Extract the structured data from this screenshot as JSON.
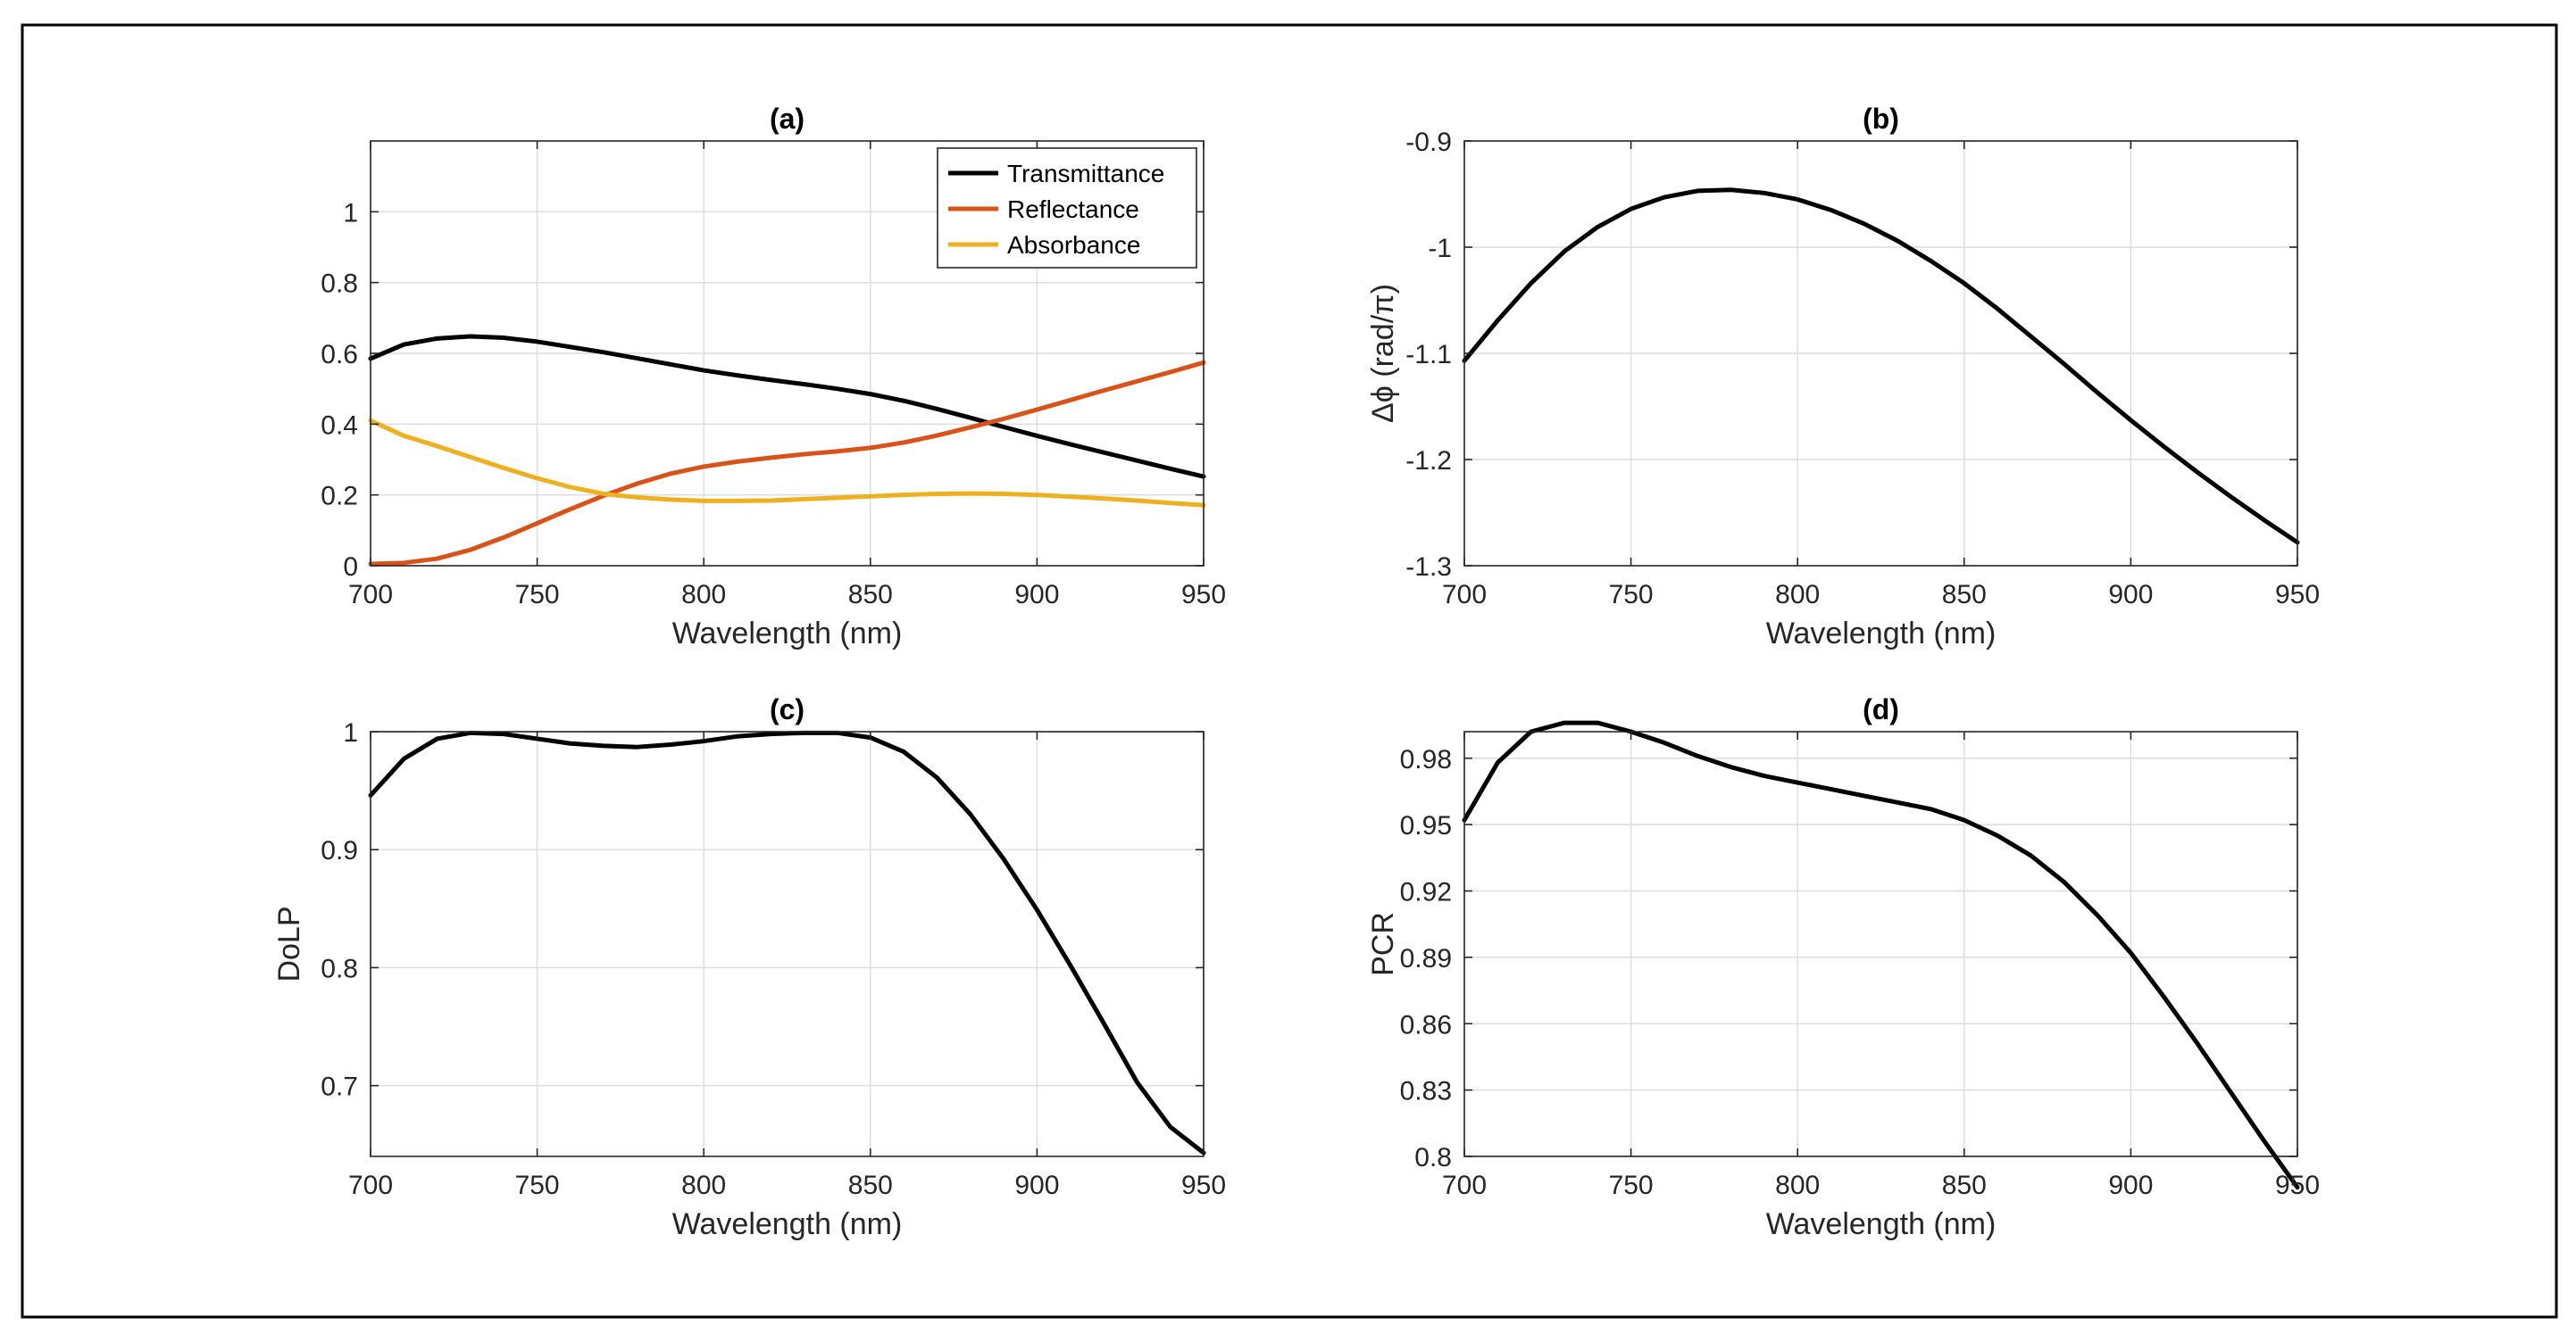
{
  "chart_data": [
    {
      "panel": "a",
      "type": "line",
      "title": "(a)",
      "xlabel": "Wavelength (nm)",
      "ylabel": "",
      "xlim": [
        700,
        950
      ],
      "ylim": [
        0,
        1.2
      ],
      "grid": true,
      "legend": "top-right",
      "xticks": [
        {
          "value": 700,
          "label": "700"
        },
        {
          "value": 750,
          "label": "750"
        },
        {
          "value": 800,
          "label": "800"
        },
        {
          "value": 850,
          "label": "850"
        },
        {
          "value": 900,
          "label": "900"
        },
        {
          "value": 950,
          "label": "950"
        }
      ],
      "yticks": [
        {
          "value": 0,
          "label": "0"
        },
        {
          "value": 0.2,
          "label": "0.2"
        },
        {
          "value": 0.4,
          "label": "0.4"
        },
        {
          "value": 0.6,
          "label": "0.6"
        },
        {
          "value": 0.8,
          "label": "0.8"
        },
        {
          "value": 1,
          "label": "1"
        }
      ],
      "series": [
        {
          "name": "Transmittance",
          "color": "#000000",
          "x": [
            700,
            710,
            720,
            730,
            740,
            750,
            760,
            770,
            780,
            790,
            800,
            810,
            820,
            830,
            840,
            850,
            860,
            870,
            880,
            890,
            900,
            910,
            920,
            930,
            940,
            950
          ],
          "y": [
            0.585,
            0.625,
            0.642,
            0.648,
            0.644,
            0.633,
            0.618,
            0.603,
            0.586,
            0.569,
            0.552,
            0.538,
            0.525,
            0.513,
            0.5,
            0.485,
            0.466,
            0.443,
            0.418,
            0.392,
            0.367,
            0.343,
            0.32,
            0.297,
            0.274,
            0.252
          ]
        },
        {
          "name": "Reflectance",
          "color": "#d95319",
          "x": [
            700,
            710,
            720,
            730,
            740,
            750,
            760,
            770,
            780,
            790,
            800,
            810,
            820,
            830,
            840,
            850,
            860,
            870,
            880,
            890,
            900,
            910,
            920,
            930,
            940,
            950
          ],
          "y": [
            0.005,
            0.008,
            0.02,
            0.045,
            0.08,
            0.12,
            0.16,
            0.198,
            0.232,
            0.26,
            0.28,
            0.294,
            0.305,
            0.315,
            0.323,
            0.333,
            0.348,
            0.368,
            0.391,
            0.415,
            0.441,
            0.468,
            0.495,
            0.521,
            0.547,
            0.574
          ]
        },
        {
          "name": "Absorbance",
          "color": "#edb120",
          "x": [
            700,
            710,
            720,
            730,
            740,
            750,
            760,
            770,
            780,
            790,
            800,
            810,
            820,
            830,
            840,
            850,
            860,
            870,
            880,
            890,
            900,
            910,
            920,
            930,
            940,
            950
          ],
          "y": [
            0.41,
            0.367,
            0.338,
            0.307,
            0.276,
            0.247,
            0.222,
            0.203,
            0.193,
            0.187,
            0.183,
            0.183,
            0.184,
            0.188,
            0.192,
            0.196,
            0.2,
            0.203,
            0.204,
            0.203,
            0.2,
            0.195,
            0.19,
            0.184,
            0.177,
            0.171
          ]
        }
      ]
    },
    {
      "panel": "b",
      "type": "line",
      "title": "(b)",
      "xlabel": "Wavelength (nm)",
      "ylabel": "Δϕ (rad/π)",
      "xlim": [
        700,
        950
      ],
      "ylim": [
        -1.3,
        -0.9
      ],
      "grid": true,
      "xticks": [
        {
          "value": 700,
          "label": "700"
        },
        {
          "value": 750,
          "label": "750"
        },
        {
          "value": 800,
          "label": "800"
        },
        {
          "value": 850,
          "label": "850"
        },
        {
          "value": 900,
          "label": "900"
        },
        {
          "value": 950,
          "label": "950"
        }
      ],
      "yticks": [
        {
          "value": -1.3,
          "label": "-1.3"
        },
        {
          "value": -1.2,
          "label": "-1.2"
        },
        {
          "value": -1.1,
          "label": "-1.1"
        },
        {
          "value": -1.0,
          "label": "-1"
        },
        {
          "value": -0.9,
          "label": "-0.9"
        }
      ],
      "series": [
        {
          "name": "phase difference",
          "color": "#000000",
          "x": [
            700,
            710,
            720,
            730,
            740,
            750,
            760,
            770,
            780,
            790,
            800,
            810,
            820,
            830,
            840,
            850,
            860,
            870,
            880,
            890,
            900,
            910,
            920,
            930,
            940,
            950
          ],
          "y": [
            -1.107,
            -1.069,
            -1.034,
            -1.004,
            -0.981,
            -0.964,
            -0.953,
            -0.947,
            -0.946,
            -0.949,
            -0.955,
            -0.965,
            -0.978,
            -0.994,
            -1.013,
            -1.034,
            -1.058,
            -1.084,
            -1.11,
            -1.137,
            -1.163,
            -1.188,
            -1.212,
            -1.235,
            -1.257,
            -1.278
          ]
        }
      ]
    },
    {
      "panel": "c",
      "type": "line",
      "title": "(c)",
      "xlabel": "Wavelength (nm)",
      "ylabel": "DoLP",
      "xlim": [
        700,
        950
      ],
      "ylim": [
        0.64,
        1.0
      ],
      "grid": true,
      "xticks": [
        {
          "value": 700,
          "label": "700"
        },
        {
          "value": 750,
          "label": "750"
        },
        {
          "value": 800,
          "label": "800"
        },
        {
          "value": 850,
          "label": "850"
        },
        {
          "value": 900,
          "label": "900"
        },
        {
          "value": 950,
          "label": "950"
        }
      ],
      "yticks": [
        {
          "value": 0.7,
          "label": "0.7"
        },
        {
          "value": 0.8,
          "label": "0.8"
        },
        {
          "value": 0.9,
          "label": "0.9"
        },
        {
          "value": 1.0,
          "label": "1"
        }
      ],
      "series": [
        {
          "name": "DoLP",
          "color": "#000000",
          "x": [
            700,
            710,
            720,
            730,
            740,
            750,
            760,
            770,
            780,
            790,
            800,
            810,
            820,
            830,
            840,
            850,
            860,
            870,
            880,
            890,
            900,
            910,
            920,
            930,
            940,
            950
          ],
          "y": [
            0.946,
            0.977,
            0.994,
            0.999,
            0.998,
            0.994,
            0.99,
            0.988,
            0.987,
            0.989,
            0.992,
            0.996,
            0.998,
            0.999,
            0.999,
            0.995,
            0.983,
            0.961,
            0.93,
            0.892,
            0.849,
            0.802,
            0.753,
            0.703,
            0.665,
            0.643
          ]
        }
      ]
    },
    {
      "panel": "d",
      "type": "line",
      "title": "(d)",
      "xlabel": "Wavelength (nm)",
      "ylabel": "PCR",
      "xlim": [
        700,
        950
      ],
      "ylim": [
        0.8,
        0.992
      ],
      "grid": true,
      "xticks": [
        {
          "value": 700,
          "label": "700"
        },
        {
          "value": 750,
          "label": "750"
        },
        {
          "value": 800,
          "label": "800"
        },
        {
          "value": 850,
          "label": "850"
        },
        {
          "value": 900,
          "label": "900"
        },
        {
          "value": 950,
          "label": "950"
        }
      ],
      "yticks": [
        {
          "value": 0.8,
          "label": "0.8"
        },
        {
          "value": 0.83,
          "label": "0.83"
        },
        {
          "value": 0.86,
          "label": "0.86"
        },
        {
          "value": 0.89,
          "label": "0.89"
        },
        {
          "value": 0.92,
          "label": "0.92"
        },
        {
          "value": 0.95,
          "label": "0.95"
        },
        {
          "value": 0.98,
          "label": "0.98"
        }
      ],
      "series": [
        {
          "name": "PCR",
          "color": "#000000",
          "x": [
            700,
            710,
            720,
            730,
            740,
            750,
            760,
            770,
            780,
            790,
            800,
            810,
            820,
            830,
            840,
            850,
            860,
            870,
            880,
            890,
            900,
            910,
            920,
            930,
            940,
            950
          ],
          "y": [
            0.952,
            0.978,
            0.992,
            0.996,
            0.996,
            0.992,
            0.987,
            0.981,
            0.976,
            0.972,
            0.969,
            0.966,
            0.963,
            0.96,
            0.957,
            0.952,
            0.945,
            0.936,
            0.924,
            0.909,
            0.892,
            0.872,
            0.851,
            0.829,
            0.807,
            0.786
          ]
        }
      ]
    }
  ]
}
